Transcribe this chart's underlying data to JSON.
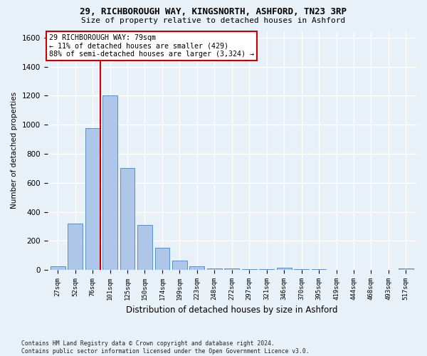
{
  "title_line1": "29, RICHBOROUGH WAY, KINGSNORTH, ASHFORD, TN23 3RP",
  "title_line2": "Size of property relative to detached houses in Ashford",
  "xlabel": "Distribution of detached houses by size in Ashford",
  "ylabel": "Number of detached properties",
  "footnote": "Contains HM Land Registry data © Crown copyright and database right 2024.\nContains public sector information licensed under the Open Government Licence v3.0.",
  "bar_labels": [
    "27sqm",
    "52sqm",
    "76sqm",
    "101sqm",
    "125sqm",
    "150sqm",
    "174sqm",
    "199sqm",
    "223sqm",
    "248sqm",
    "272sqm",
    "297sqm",
    "321sqm",
    "346sqm",
    "370sqm",
    "395sqm",
    "419sqm",
    "444sqm",
    "468sqm",
    "493sqm",
    "517sqm"
  ],
  "bar_values": [
    25,
    320,
    975,
    1200,
    700,
    310,
    155,
    65,
    25,
    12,
    10,
    8,
    5,
    18,
    5,
    5,
    3,
    2,
    2,
    2,
    10
  ],
  "bar_color": "#aec6e8",
  "bar_edge_color": "#5a8fc0",
  "annotation_title": "29 RICHBOROUGH WAY: 79sqm",
  "annotation_line1": "← 11% of detached houses are smaller (429)",
  "annotation_line2": "88% of semi-detached houses are larger (3,324) →",
  "annotation_box_color": "#ffffff",
  "annotation_box_edge_color": "#cc0000",
  "vline_color": "#cc0000",
  "vline_bar_index": 2,
  "ylim": [
    0,
    1650
  ],
  "yticks": [
    0,
    200,
    400,
    600,
    800,
    1000,
    1200,
    1400,
    1600
  ],
  "background_color": "#e8f0f8",
  "grid_color": "#ffffff"
}
